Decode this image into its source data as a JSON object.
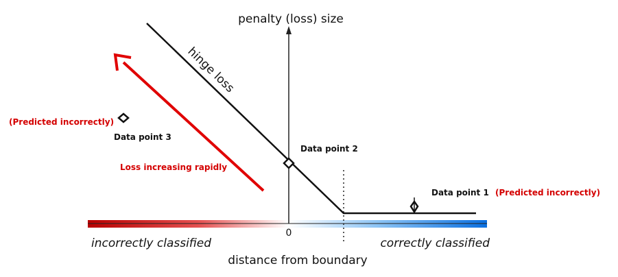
{
  "diagram": {
    "y_axis_label": "penalty (loss) size",
    "x_axis_label": "distance from boundary",
    "origin_label": "0",
    "left_region_label": "incorrectly classified",
    "right_region_label": "correctly classified",
    "curve_label": "hinge loss",
    "arrow_label": "Loss increasing rapidly",
    "points": [
      {
        "name": "Data point 1",
        "note": "(Predicted incorrectly)"
      },
      {
        "name": "Data point 2"
      },
      {
        "name": "Data point 3",
        "note": "(Predicted incorrectly)"
      }
    ]
  },
  "colors": {
    "red": "#cc0000",
    "blue": "#0a6fe0",
    "arrow_red": "#e00000",
    "ink": "#111111"
  }
}
